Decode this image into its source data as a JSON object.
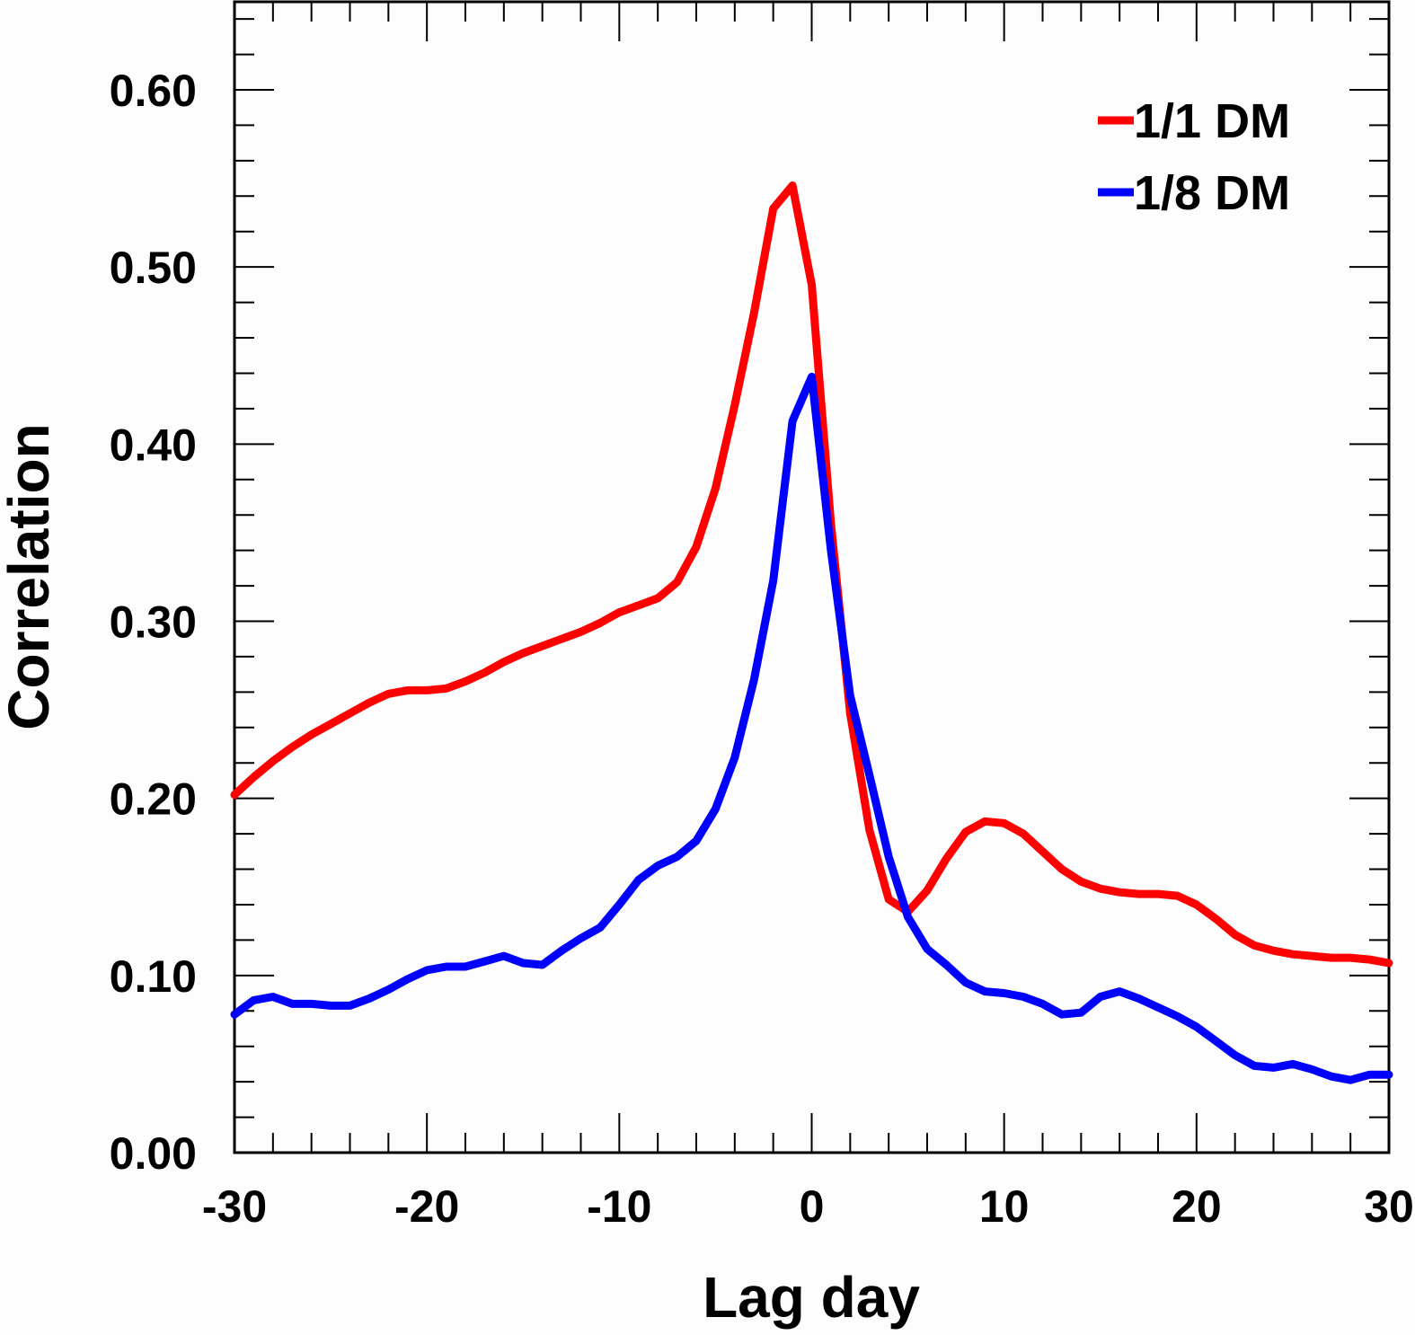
{
  "chart_data": {
    "type": "line",
    "title": "",
    "xlabel": "Lag day",
    "ylabel": "Correlation",
    "xlim": [
      -30,
      30
    ],
    "ylim": [
      0,
      0.65
    ],
    "x_ticks": [
      -30,
      -20,
      -10,
      0,
      10,
      20,
      30
    ],
    "x_tick_labels": [
      "-30",
      "-20",
      "-10",
      "0",
      "10",
      "20",
      "30"
    ],
    "y_ticks": [
      0,
      0.1,
      0.2,
      0.3,
      0.4,
      0.5,
      0.6
    ],
    "y_tick_labels": [
      "0.00",
      "0.10",
      "0.20",
      "0.30",
      "0.40",
      "0.50",
      "0.60"
    ],
    "grid": false,
    "legend_position": "top-right",
    "series": [
      {
        "name": "1/1 DM",
        "color": "#ff0000",
        "x": [
          -30,
          -29,
          -28,
          -27,
          -26,
          -25,
          -24,
          -23,
          -22,
          -21,
          -20,
          -19,
          -18,
          -17,
          -16,
          -15,
          -14,
          -13,
          -12,
          -11,
          -10,
          -9,
          -8,
          -7,
          -6,
          -5,
          -4,
          -3,
          -2,
          -1,
          0,
          1,
          2,
          3,
          4,
          5,
          6,
          7,
          8,
          9,
          10,
          11,
          12,
          13,
          14,
          15,
          16,
          17,
          18,
          19,
          20,
          21,
          22,
          23,
          24,
          25,
          26,
          27,
          28,
          29,
          30
        ],
        "y": [
          0.202,
          0.212,
          0.221,
          0.229,
          0.236,
          0.242,
          0.248,
          0.254,
          0.259,
          0.261,
          0.261,
          0.262,
          0.266,
          0.271,
          0.277,
          0.282,
          0.286,
          0.29,
          0.294,
          0.299,
          0.305,
          0.309,
          0.313,
          0.322,
          0.342,
          0.375,
          0.422,
          0.474,
          0.533,
          0.546,
          0.49,
          0.355,
          0.248,
          0.182,
          0.143,
          0.136,
          0.148,
          0.166,
          0.181,
          0.187,
          0.186,
          0.18,
          0.17,
          0.16,
          0.153,
          0.149,
          0.147,
          0.146,
          0.146,
          0.145,
          0.14,
          0.132,
          0.123,
          0.117,
          0.114,
          0.112,
          0.111,
          0.11,
          0.11,
          0.109,
          0.107
        ]
      },
      {
        "name": "1/8 DM",
        "color": "#0000ff",
        "x": [
          -30,
          -29,
          -28,
          -27,
          -26,
          -25,
          -24,
          -23,
          -22,
          -21,
          -20,
          -19,
          -18,
          -17,
          -16,
          -15,
          -14,
          -13,
          -12,
          -11,
          -10,
          -9,
          -8,
          -7,
          -6,
          -5,
          -4,
          -3,
          -2,
          -1,
          0,
          1,
          2,
          3,
          4,
          5,
          6,
          7,
          8,
          9,
          10,
          11,
          12,
          13,
          14,
          15,
          16,
          17,
          18,
          19,
          20,
          21,
          22,
          23,
          24,
          25,
          26,
          27,
          28,
          29,
          30
        ],
        "y": [
          0.078,
          0.086,
          0.088,
          0.084,
          0.084,
          0.083,
          0.083,
          0.087,
          0.092,
          0.098,
          0.103,
          0.105,
          0.105,
          0.108,
          0.111,
          0.107,
          0.106,
          0.114,
          0.121,
          0.127,
          0.14,
          0.154,
          0.162,
          0.167,
          0.176,
          0.194,
          0.223,
          0.267,
          0.323,
          0.413,
          0.438,
          0.34,
          0.258,
          0.213,
          0.167,
          0.133,
          0.115,
          0.106,
          0.096,
          0.091,
          0.09,
          0.088,
          0.084,
          0.078,
          0.079,
          0.088,
          0.091,
          0.087,
          0.082,
          0.077,
          0.071,
          0.063,
          0.055,
          0.049,
          0.048,
          0.05,
          0.047,
          0.043,
          0.041,
          0.044,
          0.044
        ]
      }
    ]
  }
}
